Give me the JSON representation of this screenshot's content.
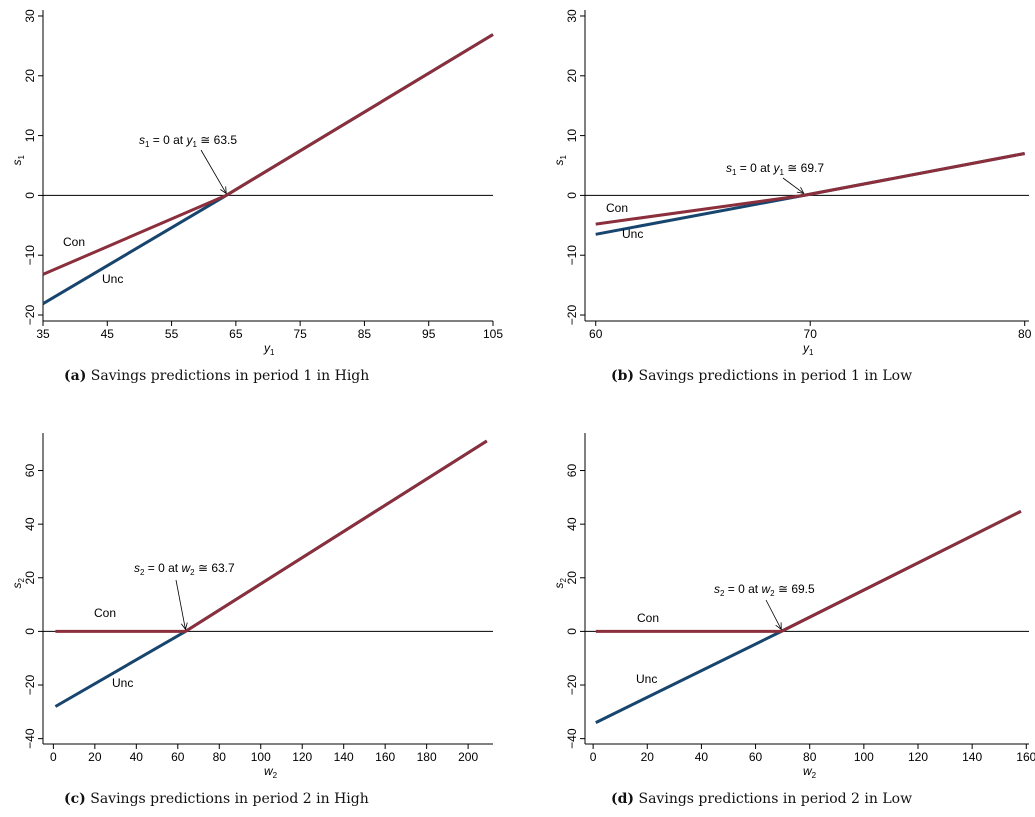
{
  "chart_data": [
    {
      "panel": "a",
      "type": "line",
      "caption_tag": "(a)",
      "caption": "Savings predictions in period 1 in High",
      "xlabel": "y1",
      "ylabel": "s1",
      "xlim": [
        35,
        105
      ],
      "ylim": [
        -21,
        31
      ],
      "xticks": [
        35,
        45,
        55,
        65,
        75,
        85,
        95,
        105
      ],
      "yticks": [
        -20,
        -10,
        0,
        10,
        20,
        30
      ],
      "zero_line": true,
      "series": [
        {
          "name": "Con",
          "color": "#8b2f3c",
          "x": [
            35,
            63.5,
            105
          ],
          "y": [
            -13.2,
            0,
            26.9
          ]
        },
        {
          "name": "Unc",
          "color": "#17456e",
          "x": [
            35,
            63.5,
            105
          ],
          "y": [
            -18.1,
            0,
            26.9
          ]
        }
      ],
      "annotation": {
        "text": "s1 = 0 at y1 ≅ 63.5",
        "var_s": "s",
        "sub_s": "1",
        "var_x": "y",
        "sub_x": "1",
        "value": "63.5",
        "x": 63.5,
        "y": 0
      }
    },
    {
      "panel": "b",
      "type": "line",
      "caption_tag": "(b)",
      "caption": "Savings predictions in period 1 in Low",
      "xlabel": "y1",
      "ylabel": "s1",
      "xlim": [
        59.5,
        80.2
      ],
      "ylim": [
        -21,
        31
      ],
      "xticks": [
        60,
        70,
        80
      ],
      "yticks": [
        -20,
        -10,
        0,
        10,
        20,
        30
      ],
      "zero_line": true,
      "series": [
        {
          "name": "Con",
          "color": "#8b2f3c",
          "x": [
            60,
            69.7,
            80
          ],
          "y": [
            -4.8,
            0,
            7
          ]
        },
        {
          "name": "Unc",
          "color": "#17456e",
          "x": [
            60,
            69.7,
            80
          ],
          "y": [
            -6.5,
            0,
            7
          ]
        }
      ],
      "annotation": {
        "text": "s1 = 0 at y1 ≅ 69.7",
        "var_s": "s",
        "sub_s": "1",
        "var_x": "y",
        "sub_x": "1",
        "value": "69.7",
        "x": 69.7,
        "y": 0
      }
    },
    {
      "panel": "c",
      "type": "line",
      "caption_tag": "(c)",
      "caption": "Savings predictions in period 2 in High",
      "xlabel": "w2",
      "ylabel": "s2",
      "xlim": [
        -5,
        212
      ],
      "ylim": [
        -42,
        74
      ],
      "xticks": [
        0,
        20,
        40,
        60,
        80,
        100,
        120,
        140,
        160,
        180,
        200
      ],
      "yticks": [
        -40,
        -20,
        0,
        20,
        40,
        60
      ],
      "zero_line": true,
      "series": [
        {
          "name": "Con",
          "color": "#8b2f3c",
          "x": [
            1,
            63.7,
            209
          ],
          "y": [
            0,
            0,
            71
          ]
        },
        {
          "name": "Unc",
          "color": "#17456e",
          "x": [
            1,
            63.7,
            209
          ],
          "y": [
            -28,
            0,
            71
          ]
        }
      ],
      "annotation": {
        "text": "s2 = 0 at w2 ≅ 63.7",
        "var_s": "s",
        "sub_s": "2",
        "var_x": "w",
        "sub_x": "2",
        "value": "63.7",
        "x": 63.7,
        "y": 0
      }
    },
    {
      "panel": "d",
      "type": "line",
      "caption_tag": "(d)",
      "caption": "Savings predictions in period 2 in Low",
      "xlabel": "w2",
      "ylabel": "s2",
      "xlim": [
        -3,
        161
      ],
      "ylim": [
        -42,
        74
      ],
      "xticks": [
        0,
        20,
        40,
        60,
        80,
        100,
        120,
        140,
        160
      ],
      "yticks": [
        -40,
        -20,
        0,
        20,
        40,
        60
      ],
      "zero_line": true,
      "series": [
        {
          "name": "Con",
          "color": "#8b2f3c",
          "x": [
            1,
            69.5,
            158
          ],
          "y": [
            0,
            0,
            44.8
          ]
        },
        {
          "name": "Unc",
          "color": "#17456e",
          "x": [
            1,
            69.5,
            158
          ],
          "y": [
            -34,
            0,
            44.8
          ]
        }
      ],
      "annotation": {
        "text": "s2 = 0 at w2 ≅ 69.5",
        "var_s": "s",
        "sub_s": "2",
        "var_x": "w",
        "sub_x": "2",
        "value": "69.5",
        "x": 69.5,
        "y": 0
      }
    }
  ]
}
